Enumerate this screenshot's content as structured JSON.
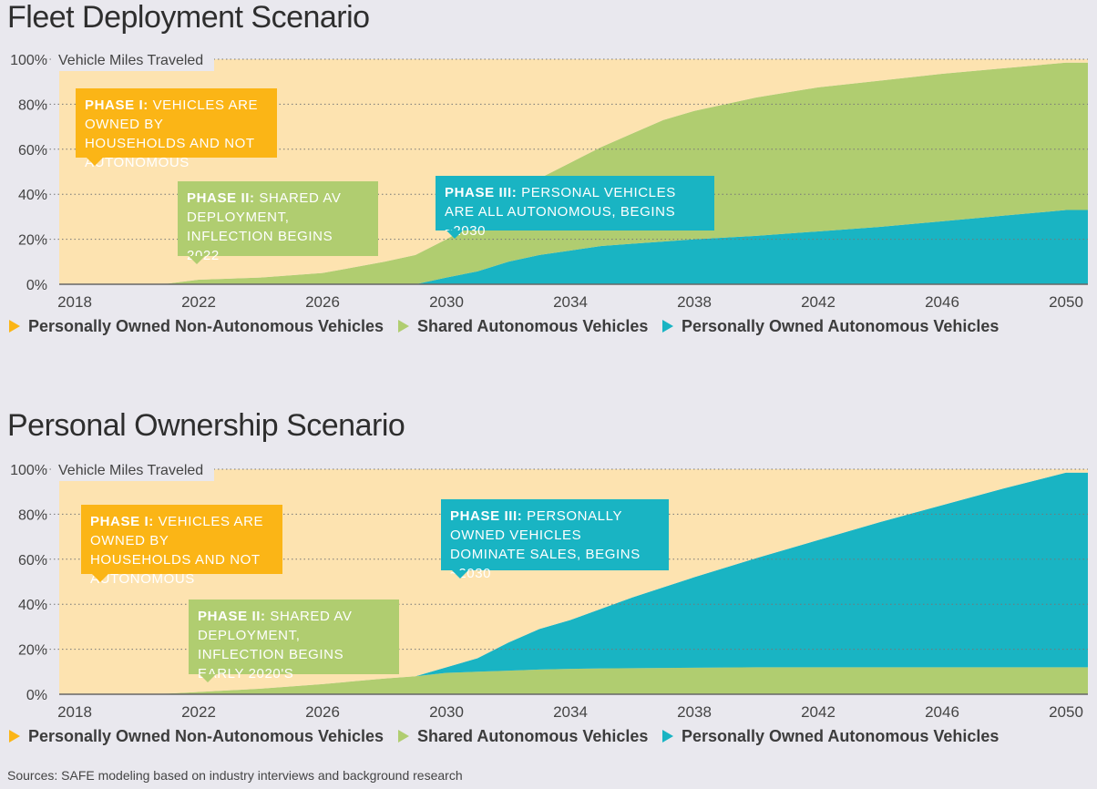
{
  "colors": {
    "non_autonomous": "#fde3b0",
    "shared": "#b0cd70",
    "personal_av": "#19b4c3",
    "phase1": "#fbb516",
    "background": "#e9e8ee"
  },
  "legend": [
    {
      "label": "Personally Owned Non-Autonomous Vehicles",
      "color": "#fbb516"
    },
    {
      "label": "Shared Autonomous Vehicles",
      "color": "#b0cd70"
    },
    {
      "label": "Personally Owned Autonomous Vehicles",
      "color": "#19b4c3"
    }
  ],
  "source": "Sources: SAFE modeling based on industry interviews and background research",
  "chart_data": [
    {
      "type": "area",
      "stacked": true,
      "title": "Fleet Deployment Scenario",
      "ylabel": "Vehicle Miles Traveled",
      "ylim": [
        0,
        100
      ],
      "grid": true,
      "y_ticks": [
        "0%",
        "20%",
        "40%",
        "60%",
        "80%",
        "100%"
      ],
      "x_ticks": [
        "2018",
        "2022",
        "2026",
        "2030",
        "2034",
        "2038",
        "2042",
        "2046",
        "2050"
      ],
      "x": [
        2018,
        2020,
        2021,
        2022,
        2024,
        2026,
        2028,
        2029,
        2030,
        2031,
        2032,
        2033,
        2034,
        2035,
        2036,
        2037,
        2038,
        2040,
        2042,
        2044,
        2046,
        2048,
        2050
      ],
      "stack_order": [
        "Personally Owned Autonomous Vehicles",
        "Shared Autonomous Vehicles",
        "Personally Owned Non-Autonomous Vehicles"
      ],
      "series": [
        {
          "name": "Personally Owned Non-Autonomous Vehicles",
          "color": "#fde3b0",
          "values": [
            100,
            100,
            99.7,
            98,
            97,
            95,
            90,
            87,
            80,
            72,
            64,
            53,
            46,
            39,
            33,
            27,
            23,
            17,
            12.5,
            9.5,
            6.5,
            4,
            1.5
          ]
        },
        {
          "name": "Shared Autonomous Vehicles",
          "color": "#b0cd70",
          "values": [
            0,
            0,
            0.3,
            2,
            3,
            5,
            10,
            13,
            17,
            22.3,
            26,
            34,
            39,
            44,
            49,
            54,
            57,
            61.5,
            64,
            65,
            65.5,
            65.5,
            65.5
          ]
        },
        {
          "name": "Personally Owned Autonomous Vehicles",
          "color": "#19b4c3",
          "values": [
            0,
            0,
            0,
            0,
            0,
            0,
            0,
            0,
            3,
            5.7,
            10,
            13,
            15,
            17,
            18,
            19,
            20,
            21.5,
            23.5,
            25.5,
            28,
            30.5,
            33
          ]
        }
      ],
      "annotations": [
        {
          "bold": "Phase I:",
          "text": " Vehicles are owned by households and not autonomous",
          "color": "#fbb516"
        },
        {
          "bold": "Phase II:",
          "text": " Shared AV deployment, inflection begins 2022",
          "color": "#b0cd70"
        },
        {
          "bold": "Phase III:",
          "text": " Personal vehicles are all autonomous, begins ~2030",
          "color": "#19b4c3"
        }
      ]
    },
    {
      "type": "area",
      "stacked": true,
      "title": "Personal Ownership Scenario",
      "ylabel": "Vehicle Miles Traveled",
      "ylim": [
        0,
        100
      ],
      "grid": true,
      "y_ticks": [
        "0%",
        "20%",
        "40%",
        "60%",
        "80%",
        "100%"
      ],
      "x_ticks": [
        "2018",
        "2022",
        "2026",
        "2030",
        "2034",
        "2038",
        "2042",
        "2046",
        "2050"
      ],
      "x": [
        2018,
        2020,
        2021,
        2022,
        2024,
        2026,
        2028,
        2029,
        2030,
        2031,
        2032,
        2033,
        2034,
        2035,
        2036,
        2037,
        2038,
        2040,
        2042,
        2044,
        2046,
        2048,
        2050
      ],
      "stack_order": [
        "Shared Autonomous Vehicles",
        "Personally Owned Autonomous Vehicles",
        "Personally Owned Non-Autonomous Vehicles"
      ],
      "series": [
        {
          "name": "Personally Owned Non-Autonomous Vehicles",
          "color": "#fde3b0",
          "values": [
            100,
            100,
            99.7,
            99,
            97.5,
            95.5,
            93,
            92,
            88,
            84,
            77,
            71,
            67,
            62,
            57,
            52.5,
            48,
            39.5,
            31.5,
            23.5,
            16,
            8.5,
            1.5
          ]
        },
        {
          "name": "Shared Autonomous Vehicles",
          "color": "#b0cd70",
          "values": [
            0,
            0,
            0.3,
            1,
            2.5,
            4.5,
            7,
            8,
            9.5,
            10,
            10.5,
            11,
            11.3,
            11.5,
            11.6,
            11.7,
            11.8,
            12,
            12,
            12,
            12,
            12,
            12
          ]
        },
        {
          "name": "Personally Owned Autonomous Vehicles",
          "color": "#19b4c3",
          "values": [
            0,
            0,
            0,
            0,
            0,
            0,
            0,
            0,
            2.5,
            6,
            12.5,
            18,
            21.7,
            26.5,
            31.4,
            35.8,
            40.2,
            48.5,
            56.5,
            64.5,
            72,
            79.5,
            86.5
          ]
        }
      ],
      "annotations": [
        {
          "bold": "Phase I:",
          "text": " Vehicles are owned by households and not autonomous",
          "color": "#fbb516"
        },
        {
          "bold": "Phase II:",
          "text": " Shared AV deployment, inflection begins early 2020's",
          "color": "#b0cd70"
        },
        {
          "bold": "Phase III:",
          "text": " Personally owned vehicles dominate sales, begins ~2030",
          "color": "#19b4c3"
        }
      ]
    }
  ]
}
